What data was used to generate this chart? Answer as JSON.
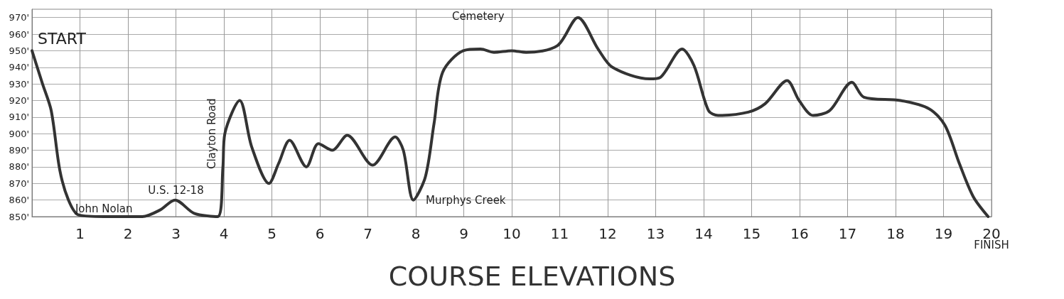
{
  "chart_data": {
    "type": "line",
    "title": "COURSE ELEVATIONS",
    "series": [
      {
        "color": "#333333",
        "x": [
          0,
          0.22,
          0.4,
          0.58,
          0.76,
          0.97,
          1.5,
          2,
          2.3,
          2.67,
          2.98,
          3.38,
          3.87,
          3.98,
          4.02,
          4.33,
          4.58,
          4.94,
          5.14,
          5.37,
          5.72,
          5.97,
          6.26,
          6.57,
          7.1,
          7.57,
          7.74,
          7.95,
          8.2,
          8.38,
          8.56,
          8.99,
          9.35,
          9.63,
          10,
          10.3,
          10.95,
          11.38,
          11.8,
          12.1,
          12.87,
          13.1,
          13.55,
          13.8,
          14.1,
          14.3,
          14.93,
          15.28,
          15.74,
          15.99,
          16.28,
          16.63,
          17.09,
          17.34,
          18.1,
          18.7,
          19.03,
          19.33,
          19.62,
          19.93
        ],
        "values": [
          950,
          930,
          914,
          878,
          860,
          851,
          850,
          850,
          850,
          854,
          860,
          852,
          850,
          880,
          900,
          920,
          892,
          870,
          882,
          896,
          880,
          894,
          890,
          899,
          881,
          898,
          890,
          860,
          874,
          906,
          937,
          950,
          951,
          949,
          950,
          949,
          953,
          970,
          951,
          940,
          933,
          934,
          951,
          941,
          914,
          911,
          913,
          918,
          932,
          920,
          911,
          914,
          931,
          922,
          920,
          915,
          905,
          882,
          862,
          850
        ]
      }
    ],
    "xlim": [
      0,
      20
    ],
    "xticks": [
      1,
      2,
      3,
      4,
      5,
      6,
      7,
      8,
      9,
      10,
      11,
      12,
      13,
      14,
      15,
      16,
      17,
      18,
      19,
      20
    ],
    "ylim": [
      850,
      975
    ],
    "yticks": [
      {
        "value": 850,
        "label": "850'"
      },
      {
        "value": 860,
        "label": "860'"
      },
      {
        "value": 870,
        "label": "870'"
      },
      {
        "value": 880,
        "label": "880'"
      },
      {
        "value": 890,
        "label": "890'"
      },
      {
        "value": 900,
        "label": "900'"
      },
      {
        "value": 910,
        "label": "910'"
      },
      {
        "value": 920,
        "label": "920'"
      },
      {
        "value": 930,
        "label": "930'"
      },
      {
        "value": 940,
        "label": "940'"
      },
      {
        "value": 950,
        "label": "950'"
      },
      {
        "value": 960,
        "label": "960'"
      },
      {
        "value": 970,
        "label": "970'"
      }
    ],
    "grid": true,
    "marker": "none",
    "line_style": "solid",
    "annotations": [
      {
        "text": "START",
        "x": 0,
        "y": 950
      },
      {
        "text": "John Nolan",
        "x": 1.5,
        "y": 850
      },
      {
        "text": "U.S. 12-18",
        "x": 3,
        "y": 860
      },
      {
        "text": "Clayton Road",
        "x": 4,
        "y": 900
      },
      "Cemetery",
      {
        "text": "Murphys Creek",
        "x": 8,
        "y": 860
      },
      {
        "text": "FINISH",
        "x": 20,
        "y": 850
      }
    ]
  }
}
